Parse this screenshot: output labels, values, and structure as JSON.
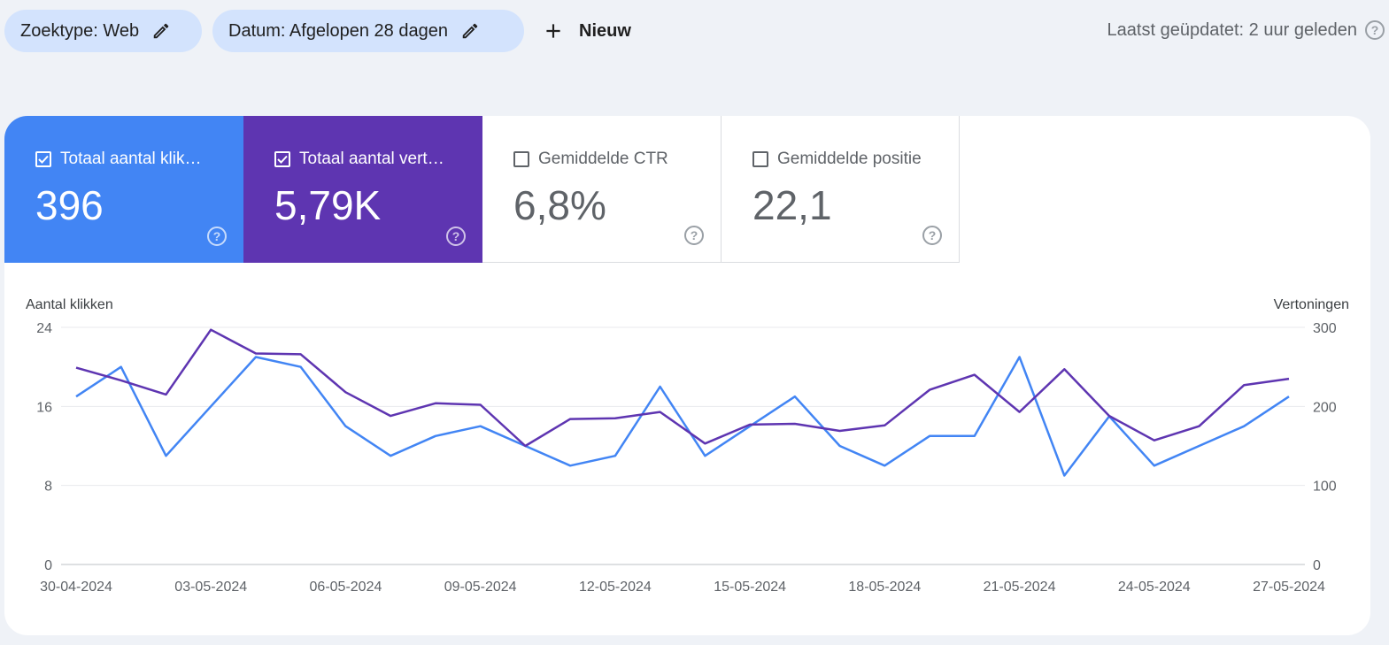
{
  "filters": {
    "search_type": "Zoektype: Web",
    "date": "Datum: Afgelopen 28 dagen",
    "new_label": "Nieuw"
  },
  "last_updated": "Laatst geüpdatet: 2 uur geleden",
  "metrics": {
    "clicks": {
      "label": "Totaal aantal klik…",
      "value": "396",
      "checked": true,
      "color": "#4285f4"
    },
    "impressions": {
      "label": "Totaal aantal vert…",
      "value": "5,79K",
      "checked": true,
      "color": "#5e35b1"
    },
    "ctr": {
      "label": "Gemiddelde CTR",
      "value": "6,8%",
      "checked": false
    },
    "position": {
      "label": "Gemiddelde positie",
      "value": "22,1",
      "checked": false
    }
  },
  "chart_data": {
    "type": "line",
    "ylabel_left": "Aantal klikken",
    "ylabel_right": "Vertoningen",
    "ylim_left": [
      0,
      24
    ],
    "ylim_right": [
      0,
      300
    ],
    "yticks_left": [
      "0",
      "8",
      "16",
      "24"
    ],
    "yticks_right": [
      "0",
      "100",
      "200",
      "300"
    ],
    "xtick_labels": [
      "30-04-2024",
      "03-05-2024",
      "06-05-2024",
      "09-05-2024",
      "12-05-2024",
      "15-05-2024",
      "18-05-2024",
      "21-05-2024",
      "24-05-2024",
      "27-05-2024"
    ],
    "x": [
      "30-04-2024",
      "01-05-2024",
      "02-05-2024",
      "03-05-2024",
      "04-05-2024",
      "05-05-2024",
      "06-05-2024",
      "07-05-2024",
      "08-05-2024",
      "09-05-2024",
      "10-05-2024",
      "11-05-2024",
      "12-05-2024",
      "13-05-2024",
      "14-05-2024",
      "15-05-2024",
      "16-05-2024",
      "17-05-2024",
      "18-05-2024",
      "19-05-2024",
      "20-05-2024",
      "21-05-2024",
      "22-05-2024",
      "23-05-2024",
      "24-05-2024",
      "25-05-2024",
      "26-05-2024",
      "27-05-2024"
    ],
    "series": [
      {
        "name": "Aantal klikken",
        "axis": "left",
        "color": "#4285f4",
        "values": [
          17,
          20,
          11,
          16,
          21,
          20,
          14,
          11,
          13,
          14,
          12,
          10,
          11,
          18,
          11,
          14,
          17,
          12,
          10,
          13,
          13,
          21,
          9,
          15,
          10,
          12,
          14,
          17
        ]
      },
      {
        "name": "Vertoningen",
        "axis": "right",
        "color": "#5e35b1",
        "values": [
          249,
          233,
          215,
          297,
          267,
          266,
          218,
          188,
          204,
          202,
          150,
          184,
          185,
          193,
          153,
          177,
          178,
          169,
          176,
          221,
          240,
          193,
          247,
          188,
          157,
          175,
          227,
          235
        ]
      }
    ],
    "grid": true
  }
}
